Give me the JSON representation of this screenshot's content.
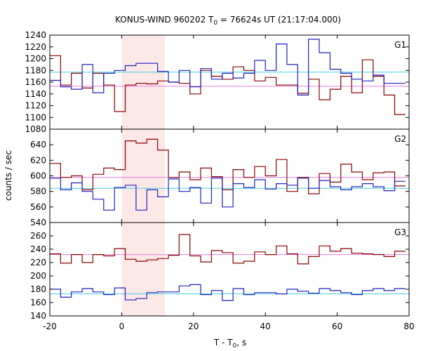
{
  "colors": {
    "red_series": "#8b0000",
    "blue_series": "#2020c0",
    "cyan_level": "#40d0e0",
    "pink_level": "#e080e0",
    "highlight": "#fde8e8"
  },
  "chart_data": {
    "type": "line",
    "title_main": "KONUS-WIND 960202 T",
    "title_sub": "0",
    "title_rest": " = 76624s UT (21:17:04.000)",
    "xlabel_main": "T - T",
    "xlabel_sub": "0",
    "xlabel_rest": ", s",
    "ylabel": "counts / sec",
    "xlim": [
      -20,
      80
    ],
    "xticks": [
      "-20",
      "0",
      "20",
      "40",
      "60",
      "80"
    ],
    "xtick_values": [
      -20,
      0,
      20,
      40,
      60,
      80
    ],
    "highlight_interval": [
      0,
      12
    ],
    "grid": false,
    "panels": [
      {
        "label": "G1",
        "ylim": [
          1080,
          1240
        ],
        "yticks": [
          1080,
          1100,
          1120,
          1140,
          1160,
          1180,
          1200,
          1220,
          1240
        ],
        "yticklabels": [
          "1080",
          "1100",
          "1120",
          "1140",
          "1160",
          "1180",
          "1200",
          "1220",
          "1240"
        ],
        "cyan_level": 1177,
        "pink_level": 1153,
        "series": [
          {
            "color_key": "red_series",
            "edges": [
              -20,
              -17,
              -14,
              -11,
              -8,
              -5,
              -2,
              1,
              4,
              7,
              10,
              13,
              16,
              19,
              22,
              25,
              28,
              31,
              34,
              37,
              40,
              43,
              46,
              49,
              52,
              55,
              58,
              61,
              64,
              67,
              70,
              73,
              76,
              79
            ],
            "values": [
              1205,
              1155,
              1175,
              1150,
              1175,
              1155,
              1110,
              1155,
              1158,
              1157,
              1162,
              1160,
              1158,
              1140,
              1180,
              1170,
              1165,
              1186,
              1180,
              1162,
              1168,
              1155,
              1155,
              1141,
              1165,
              1130,
              1148,
              1170,
              1142,
              1198,
              1170,
              1138,
              1105
            ]
          },
          {
            "color_key": "blue_series",
            "edges": [
              -20,
              -17,
              -14,
              -11,
              -8,
              -5,
              -2,
              1,
              4,
              7,
              10,
              13,
              16,
              19,
              22,
              25,
              28,
              31,
              34,
              37,
              40,
              43,
              46,
              49,
              52,
              55,
              58,
              61,
              64,
              67,
              70,
              73,
              76,
              79
            ],
            "values": [
              1163,
              1152,
              1148,
              1190,
              1142,
              1175,
              1180,
              1188,
              1192,
              1192,
              1178,
              1160,
              1180,
              1152,
              1183,
              1165,
              1175,
              1167,
              1175,
              1197,
              1180,
              1225,
              1190,
              1138,
              1233,
              1210,
              1182,
              1175,
              1165,
              1162,
              1172,
              1158,
              1158
            ]
          }
        ]
      },
      {
        "label": "G2",
        "ylim": [
          540,
          660
        ],
        "yticks": [
          540,
          560,
          580,
          600,
          620,
          640
        ],
        "yticklabels": [
          "540",
          "560",
          "580",
          "600",
          "620",
          "640"
        ],
        "cyan_level": 584,
        "pink_level": 598,
        "series": [
          {
            "color_key": "red_series",
            "edges": [
              -20,
              -17,
              -14,
              -11,
              -8,
              -5,
              -2,
              1,
              4,
              7,
              10,
              13,
              16,
              19,
              22,
              25,
              28,
              31,
              34,
              37,
              40,
              43,
              46,
              49,
              52,
              55,
              58,
              61,
              64,
              67,
              70,
              73,
              76,
              79
            ],
            "values": [
              616,
              598,
              600,
              582,
              602,
              610,
              608,
              645,
              642,
              647,
              633,
              598,
              605,
              595,
              610,
              599,
              582,
              608,
              598,
              612,
              600,
              621,
              580,
              598,
              577,
              603,
              592,
              615,
              605,
              595,
              604,
              605,
              587
            ]
          },
          {
            "color_key": "blue_series",
            "edges": [
              -20,
              -17,
              -14,
              -11,
              -8,
              -5,
              -2,
              1,
              4,
              7,
              10,
              13,
              16,
              19,
              22,
              25,
              28,
              31,
              34,
              37,
              40,
              43,
              46,
              49,
              52,
              55,
              58,
              61,
              64,
              67,
              70,
              73,
              76,
              79
            ],
            "values": [
              597,
              582,
              591,
              580,
              570,
              556,
              585,
              588,
              556,
              582,
              573,
              596,
              580,
              585,
              565,
              597,
              560,
              590,
              585,
              595,
              583,
              590,
              588,
              597,
              584,
              594,
              586,
              582,
              586,
              590,
              586,
              581,
              593
            ]
          }
        ]
      },
      {
        "label": "G3",
        "ylim": [
          140,
          280
        ],
        "yticks": [
          140,
          160,
          180,
          200,
          220,
          240,
          260
        ],
        "yticklabels": [
          "140",
          "160",
          "180",
          "200",
          "220",
          "240",
          "260"
        ],
        "cyan_level": 173,
        "pink_level": 232,
        "series": [
          {
            "color_key": "red_series",
            "edges": [
              -20,
              -17,
              -14,
              -11,
              -8,
              -5,
              -2,
              1,
              4,
              7,
              10,
              13,
              16,
              19,
              22,
              25,
              28,
              31,
              34,
              37,
              40,
              43,
              46,
              49,
              52,
              55,
              58,
              61,
              64,
              67,
              70,
              73,
              76,
              79
            ],
            "values": [
              233,
              219,
              232,
              220,
              232,
              230,
              241,
              225,
              222,
              224,
              226,
              231,
              262,
              230,
              221,
              238,
              235,
              219,
              222,
              236,
              232,
              245,
              233,
              218,
              229,
              245,
              237,
              241,
              234,
              233,
              232,
              229,
              237
            ]
          },
          {
            "color_key": "blue_series",
            "edges": [
              -20,
              -17,
              -14,
              -11,
              -8,
              -5,
              -2,
              1,
              4,
              7,
              10,
              13,
              16,
              19,
              22,
              25,
              28,
              31,
              34,
              37,
              40,
              43,
              46,
              49,
              52,
              55,
              58,
              61,
              64,
              67,
              70,
              73,
              76,
              79
            ],
            "values": [
              180,
              168,
              176,
              181,
              176,
              172,
              182,
              164,
              166,
              175,
              176,
              176,
              185,
              187,
              172,
              178,
              163,
              181,
              172,
              175,
              175,
              173,
              180,
              177,
              174,
              181,
              178,
              175,
              172,
              178,
              181,
              178,
              181
            ]
          }
        ]
      }
    ]
  }
}
